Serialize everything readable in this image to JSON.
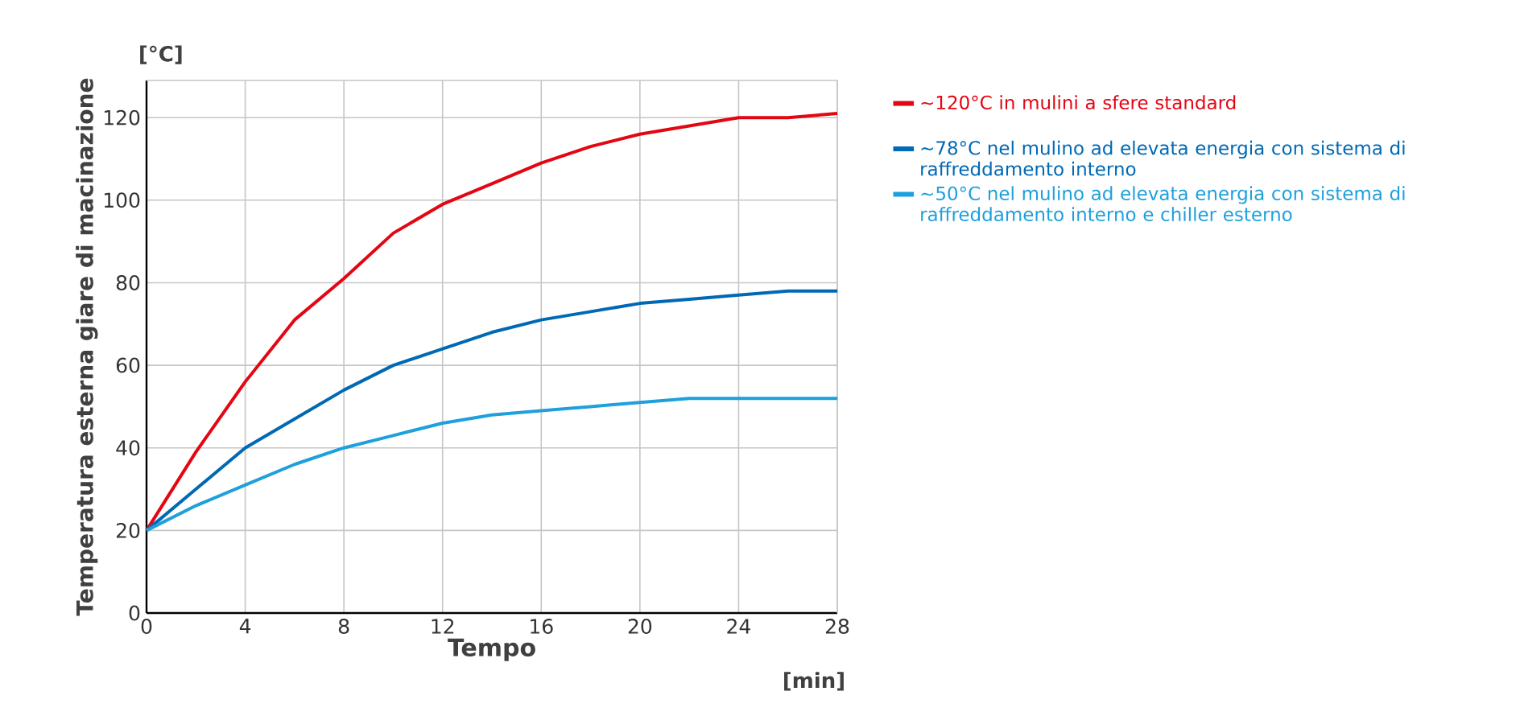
{
  "chart_data": {
    "type": "line",
    "ylabel": "Temperatura esterna giare di macinazione",
    "xlabel": "Tempo",
    "annotations": [
      "[°C]",
      "[min]"
    ],
    "x": [
      0,
      2,
      4,
      6,
      8,
      10,
      12,
      14,
      16,
      18,
      20,
      22,
      24,
      26,
      28
    ],
    "series": [
      {
        "name": "~120°C in mulini a sfere standard",
        "color": "#e30613",
        "values": [
          20,
          39,
          56,
          71,
          81,
          92,
          99,
          104,
          109,
          113,
          116,
          118,
          120,
          120,
          121
        ]
      },
      {
        "name": "~78°C nel mulino ad elevata energia con sistema di raffreddamento interno",
        "color": "#0069b4",
        "values": [
          20,
          30,
          40,
          47,
          54,
          60,
          64,
          68,
          71,
          73,
          75,
          76,
          77,
          78,
          78
        ]
      },
      {
        "name": "~50°C nel mulino ad elevata energia con sistema di raffreddamento interno e chiller esterno",
        "color": "#1ea0dc",
        "values": [
          20,
          26,
          31,
          36,
          40,
          43,
          46,
          48,
          49,
          50,
          51,
          52,
          52,
          52,
          52
        ]
      }
    ],
    "xlim": [
      0,
      28
    ],
    "ylim": [
      0,
      129
    ],
    "xticks": [
      0,
      4,
      8,
      12,
      16,
      20,
      24,
      28
    ],
    "yticks": [
      0,
      20,
      40,
      60,
      80,
      100,
      120
    ],
    "grid": true,
    "legend": "right",
    "marker": "none",
    "line_style": "solid"
  }
}
